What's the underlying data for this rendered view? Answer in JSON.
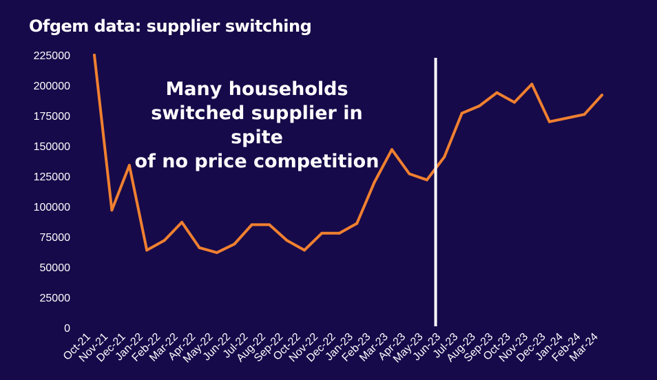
{
  "title": "Ofgem data: supplier switching",
  "annotation": "Many households\nswitched supplier in spite\nof no price competition",
  "colors": {
    "background": "#170a4a",
    "line": "#f08030",
    "marker": "#ffffff",
    "text": "#ffffff"
  },
  "chart_data": {
    "type": "line",
    "title": "Ofgem data: supplier switching",
    "xlabel": "",
    "ylabel": "",
    "ylim": [
      0,
      225000
    ],
    "yticks": [
      "0",
      "25000",
      "50000",
      "75000",
      "100000",
      "125000",
      "150000",
      "175000",
      "200000",
      "225000"
    ],
    "grid": false,
    "categories": [
      "Oct-21",
      "Nov-21",
      "Dec-21",
      "Jan-22",
      "Feb-22",
      "Mar-22",
      "Apr-22",
      "May-22",
      "Jun-22",
      "Jul-22",
      "Aug-22",
      "Sep-22",
      "Oct-22",
      "Nov-22",
      "Dec-22",
      "Jan-23",
      "Feb-23",
      "Mar-23",
      "Apr-23",
      "May-23",
      "Jun-23",
      "Jul-23",
      "Aug-23",
      "Sep-23",
      "Oct-23",
      "Nov-23",
      "Dec-23",
      "Jan-24",
      "Feb-24",
      "Mar-24"
    ],
    "values": [
      225000,
      97000,
      134000,
      64000,
      72000,
      87000,
      66000,
      62000,
      69000,
      85000,
      85000,
      72000,
      64000,
      78000,
      78000,
      86000,
      120000,
      147000,
      127000,
      122000,
      141000,
      177000,
      183000,
      194000,
      186000,
      201000,
      170000,
      173000,
      176000,
      192000
    ],
    "marker_category": "Jun-23"
  }
}
